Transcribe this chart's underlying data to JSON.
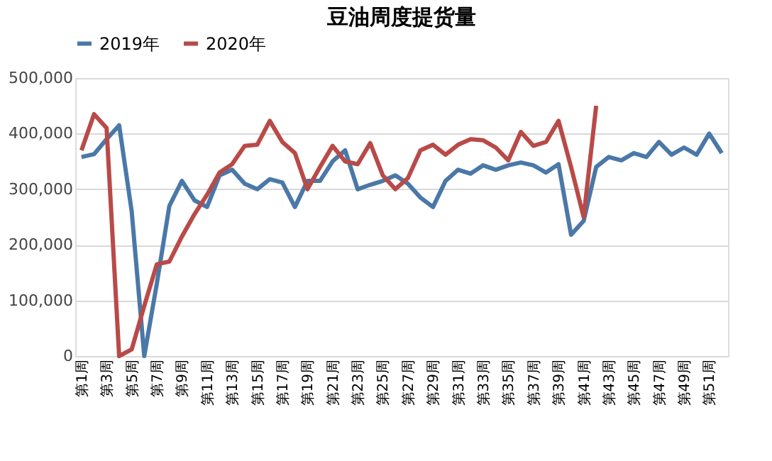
{
  "chart_data": {
    "type": "line",
    "title": "豆油周度提货量",
    "categories": [
      "第1周",
      null,
      "第3周",
      null,
      "第5周",
      null,
      "第7周",
      null,
      "第9周",
      null,
      "第11周",
      null,
      "第13周",
      null,
      "第15周",
      null,
      "第17周",
      null,
      "第19周",
      null,
      "第21周",
      null,
      "第23周",
      null,
      "第25周",
      null,
      "第27周",
      null,
      "第29周",
      null,
      "第31周",
      null,
      "第33周",
      null,
      "第35周",
      null,
      "第37周",
      null,
      "第39周",
      null,
      "第41周",
      null,
      "第43周",
      null,
      "第45周",
      null,
      "第47周",
      null,
      "第49周",
      null,
      "第51周",
      null
    ],
    "series": [
      {
        "name": "2019年",
        "color": "#4a78a8",
        "values": [
          358000,
          363000,
          390000,
          415000,
          260000,
          0,
          130000,
          270000,
          315000,
          280000,
          268000,
          325000,
          335000,
          310000,
          300000,
          318000,
          312000,
          268000,
          315000,
          315000,
          350000,
          370000,
          300000,
          308000,
          315000,
          325000,
          310000,
          285000,
          268000,
          315000,
          335000,
          328000,
          343000,
          335000,
          343000,
          348000,
          343000,
          330000,
          345000,
          218000,
          243000,
          340000,
          358000,
          352000,
          365000,
          358000,
          385000,
          362000,
          375000,
          362000,
          400000,
          365000
        ]
      },
      {
        "name": "2020年",
        "color": "#b84a48",
        "values": [
          370000,
          435000,
          410000,
          0,
          12000,
          90000,
          165000,
          170000,
          215000,
          255000,
          290000,
          330000,
          345000,
          378000,
          380000,
          423000,
          385000,
          365000,
          300000,
          340000,
          378000,
          350000,
          345000,
          383000,
          325000,
          300000,
          320000,
          370000,
          380000,
          362000,
          380000,
          390000,
          388000,
          375000,
          352000,
          403000,
          378000,
          385000,
          423000,
          340000,
          250000,
          450000,
          null,
          null,
          null,
          null,
          null,
          null,
          null,
          null,
          null,
          null
        ]
      }
    ],
    "ylim": [
      0,
      500000
    ],
    "yticks": [
      0,
      {
        "value": 100000,
        "label": "100,000"
      },
      {
        "value": 200000,
        "label": "200,000"
      },
      {
        "value": 300000,
        "label": "300,000"
      },
      {
        "value": 400000,
        "label": "400,000"
      },
      {
        "value": 500000,
        "label": "500,000"
      }
    ],
    "grid": "y",
    "legend": "top",
    "marker": "none",
    "line_style": "solid"
  }
}
